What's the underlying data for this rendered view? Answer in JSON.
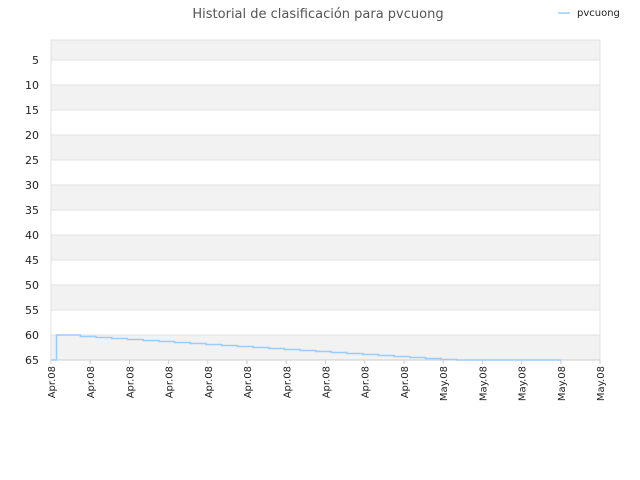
{
  "chart_data": {
    "type": "line",
    "title": "Historial de clasificación para pvcuong",
    "xlabel": "",
    "ylabel": "",
    "y_inverted": true,
    "ylim": [
      1,
      65
    ],
    "yticks": [
      5,
      10,
      15,
      20,
      25,
      30,
      35,
      40,
      45,
      50,
      55,
      60,
      65
    ],
    "xtick_labels": [
      "Apr.08",
      "Apr.08",
      "Apr.08",
      "Apr.08",
      "Apr.08",
      "Apr.08",
      "Apr.08",
      "Apr.08",
      "Apr.08",
      "Apr.08",
      "May.08",
      "May.08",
      "May.08",
      "May.08",
      "May.08"
    ],
    "grid": true,
    "legend_position": "top-right",
    "colors": {
      "line": "#99ccff",
      "band_shaded": "#f2f2f2",
      "band_white": "#ffffff",
      "axis": "#cccccc"
    },
    "series": [
      {
        "name": "pvcuong",
        "x": [
          0.0,
          0.14,
          0.35,
          0.75,
          1.15,
          1.55,
          1.95,
          2.35,
          2.75,
          3.15,
          3.55,
          3.95,
          4.35,
          4.75,
          5.15,
          5.55,
          5.95,
          6.35,
          6.75,
          7.15,
          7.55,
          7.95,
          8.35,
          8.75,
          9.15,
          9.55,
          9.95,
          10.35,
          10.75,
          11.15,
          11.55,
          11.95,
          12.35,
          12.75,
          13.0
        ],
        "y": [
          65,
          60,
          60,
          60.3,
          60.5,
          60.7,
          60.9,
          61.1,
          61.3,
          61.5,
          61.7,
          61.9,
          62.1,
          62.3,
          62.5,
          62.7,
          62.9,
          63.1,
          63.3,
          63.5,
          63.7,
          63.9,
          64.1,
          64.3,
          64.5,
          64.7,
          64.9,
          65,
          65,
          65,
          65,
          65,
          65,
          65,
          65
        ]
      }
    ]
  }
}
